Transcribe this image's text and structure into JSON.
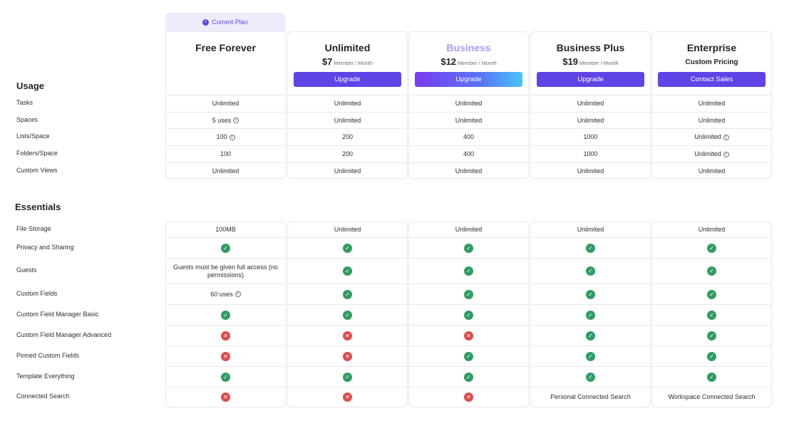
{
  "current_plan_label": "Current Plan",
  "plans": [
    {
      "name": "Free Forever",
      "price": "",
      "per": "",
      "pricing_text": "",
      "button": ""
    },
    {
      "name": "Unlimited",
      "price": "$7",
      "per": "Member / Month",
      "pricing_text": "",
      "button": "Upgrade"
    },
    {
      "name": "Business",
      "price": "$12",
      "per": "Member / Month",
      "pricing_text": "",
      "button": "Upgrade"
    },
    {
      "name": "Business Plus",
      "price": "$19",
      "per": "Member / Month",
      "pricing_text": "",
      "button": "Upgrade"
    },
    {
      "name": "Enterprise",
      "price": "",
      "per": "",
      "pricing_text": "Custom Pricing",
      "button": "Contact Sales"
    }
  ],
  "usage": {
    "title": "Usage",
    "rows": [
      {
        "label": "Tasks",
        "values": [
          {
            "t": "Unlimited"
          },
          {
            "t": "Unlimited"
          },
          {
            "t": "Unlimited"
          },
          {
            "t": "Unlimited"
          },
          {
            "t": "Unlimited"
          }
        ]
      },
      {
        "label": "Spaces",
        "values": [
          {
            "t": "5 uses",
            "info": true
          },
          {
            "t": "Unlimited"
          },
          {
            "t": "Unlimited"
          },
          {
            "t": "Unlimited"
          },
          {
            "t": "Unlimited"
          }
        ]
      },
      {
        "label": "Lists/Space",
        "values": [
          {
            "t": "100",
            "info": true
          },
          {
            "t": "200"
          },
          {
            "t": "400"
          },
          {
            "t": "1000"
          },
          {
            "t": "Unlimited",
            "info": true
          }
        ]
      },
      {
        "label": "Folders/Space",
        "values": [
          {
            "t": "100"
          },
          {
            "t": "200"
          },
          {
            "t": "400"
          },
          {
            "t": "1000"
          },
          {
            "t": "Unlimited",
            "info": true
          }
        ]
      },
      {
        "label": "Custom Views",
        "values": [
          {
            "t": "Unlimited"
          },
          {
            "t": "Unlimited"
          },
          {
            "t": "Unlimited"
          },
          {
            "t": "Unlimited"
          },
          {
            "t": "Unlimited"
          }
        ]
      }
    ]
  },
  "essentials": {
    "title": "Essentials",
    "rows": [
      {
        "label": "File Storage",
        "values": [
          {
            "t": "100MB"
          },
          {
            "t": "Unlimited"
          },
          {
            "t": "Unlimited"
          },
          {
            "t": "Unlimited"
          },
          {
            "t": "Unlimited"
          }
        ]
      },
      {
        "label": "Privacy and Sharing",
        "values": [
          {
            "ok": true
          },
          {
            "ok": true
          },
          {
            "ok": true
          },
          {
            "ok": true
          },
          {
            "ok": true
          }
        ]
      },
      {
        "label": "Guests",
        "values": [
          {
            "t": "Guests must be given full access (no permissions)"
          },
          {
            "ok": true
          },
          {
            "ok": true
          },
          {
            "ok": true
          },
          {
            "ok": true
          }
        ]
      },
      {
        "label": "Custom Fields",
        "values": [
          {
            "t": "60 uses",
            "info": true
          },
          {
            "ok": true
          },
          {
            "ok": true
          },
          {
            "ok": true
          },
          {
            "ok": true
          }
        ]
      },
      {
        "label": "Custom Field Manager Basic",
        "values": [
          {
            "ok": true
          },
          {
            "ok": true
          },
          {
            "ok": true
          },
          {
            "ok": true
          },
          {
            "ok": true
          }
        ]
      },
      {
        "label": "Custom Field Manager Advanced",
        "values": [
          {
            "ok": false
          },
          {
            "ok": false
          },
          {
            "ok": false
          },
          {
            "ok": true
          },
          {
            "ok": true
          }
        ]
      },
      {
        "label": "Pinned Custom Fields",
        "values": [
          {
            "ok": false
          },
          {
            "ok": false
          },
          {
            "ok": true
          },
          {
            "ok": true
          },
          {
            "ok": true
          }
        ]
      },
      {
        "label": "Template Everything",
        "values": [
          {
            "ok": true
          },
          {
            "ok": true
          },
          {
            "ok": true
          },
          {
            "ok": true
          },
          {
            "ok": true
          }
        ]
      },
      {
        "label": "Connected Search",
        "values": [
          {
            "ok": false
          },
          {
            "ok": false
          },
          {
            "ok": false
          },
          {
            "t": "Personal Connected Search"
          },
          {
            "t": "Workspace Connected Search"
          }
        ]
      }
    ]
  },
  "colors": {
    "accent": "#6044e6",
    "check": "#2f9d62",
    "cross": "#e04b4b",
    "current_plan_bg": "#eeebfd"
  },
  "icons": {
    "check": "check-circle-icon",
    "cross": "x-circle-icon",
    "info": "info-icon",
    "badge": "check-badge-icon"
  }
}
